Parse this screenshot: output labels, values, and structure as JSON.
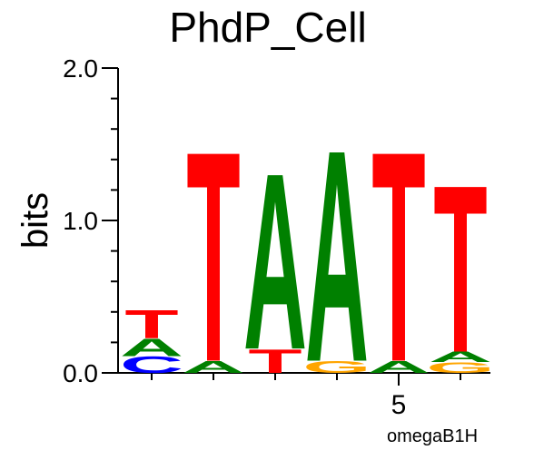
{
  "chart_data": {
    "type": "sequence-logo",
    "title": "PhdP_Cell",
    "ylabel": "bits",
    "xlabel": "omegaB1H",
    "ylim": [
      0,
      2
    ],
    "yticks": [
      "0.0",
      "1.0",
      "2.0"
    ],
    "xtick_label": "5",
    "colors": {
      "A": "#008000",
      "C": "#0000ff",
      "G": "#ffa500",
      "T": "#ff0000"
    },
    "positions": [
      {
        "pos": 1,
        "letters": [
          {
            "base": "C",
            "height": 0.11
          },
          {
            "base": "A",
            "height": 0.12
          },
          {
            "base": "T",
            "height": 0.19
          }
        ]
      },
      {
        "pos": 2,
        "letters": [
          {
            "base": "A",
            "height": 0.08
          },
          {
            "base": "T",
            "height": 1.42
          }
        ]
      },
      {
        "pos": 3,
        "letters": [
          {
            "base": "T",
            "height": 0.16
          },
          {
            "base": "A",
            "height": 1.19
          }
        ]
      },
      {
        "pos": 4,
        "letters": [
          {
            "base": "G",
            "height": 0.08
          },
          {
            "base": "A",
            "height": 1.43
          }
        ]
      },
      {
        "pos": 5,
        "letters": [
          {
            "base": "A",
            "height": 0.08
          },
          {
            "base": "T",
            "height": 1.42
          }
        ]
      },
      {
        "pos": 6,
        "letters": [
          {
            "base": "G",
            "height": 0.07
          },
          {
            "base": "A",
            "height": 0.07
          },
          {
            "base": "T",
            "height": 1.13
          }
        ]
      }
    ]
  }
}
